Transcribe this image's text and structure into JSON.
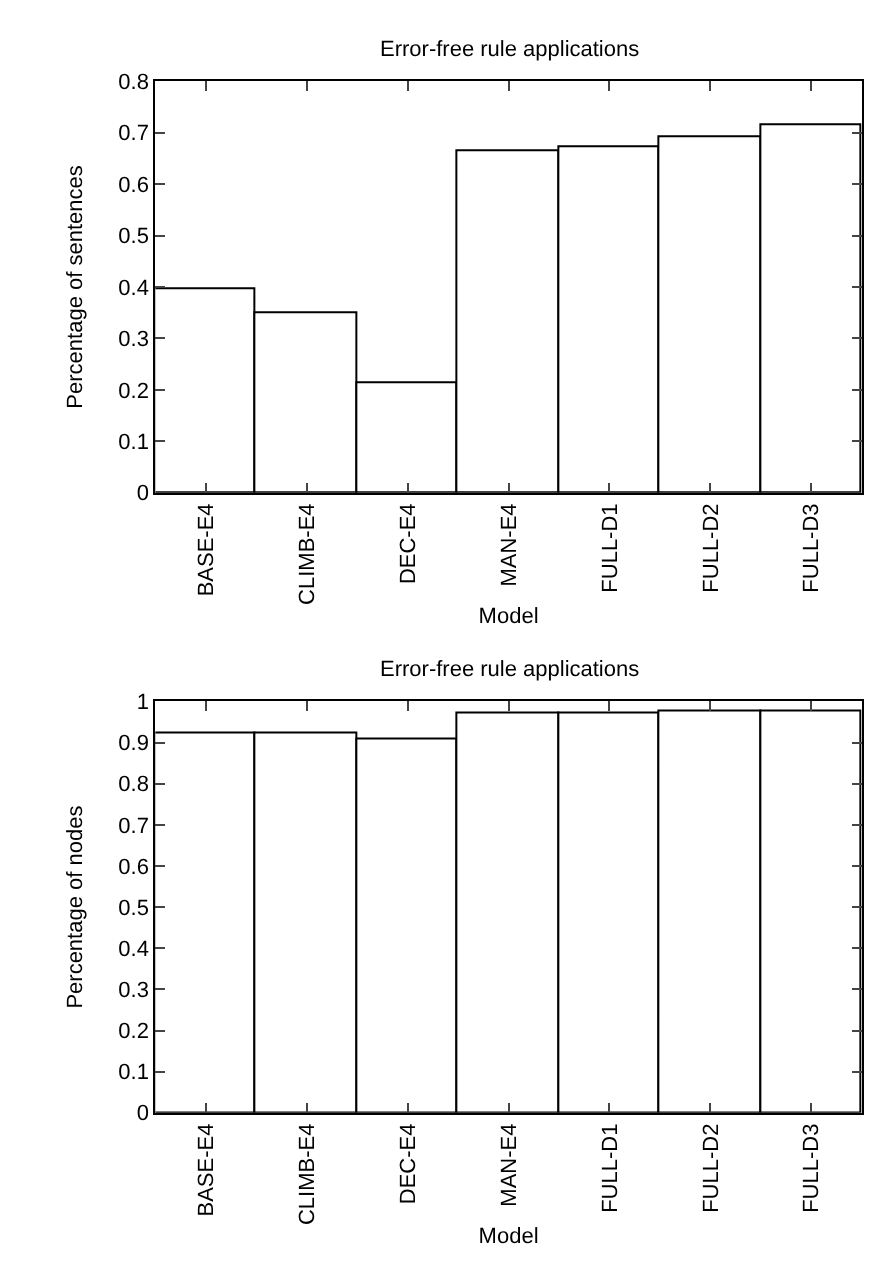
{
  "chart_data": [
    {
      "type": "bar",
      "title": "Error-free rule applications",
      "xlabel": "Model",
      "ylabel": "Percentage of sentences",
      "categories": [
        "BASE-E4",
        "CLIMB-E4",
        "DEC-E4",
        "MAN-E4",
        "FULL-D1",
        "FULL-D2",
        "FULL-D3"
      ],
      "values": [
        0.395,
        0.347,
        0.212,
        0.664,
        0.671,
        0.693,
        0.713
      ],
      "color": "#ffffff",
      "ylim": [
        0,
        0.8
      ],
      "yticks": [
        0,
        0.1,
        0.2,
        0.3,
        0.4,
        0.5,
        0.6,
        0.7,
        0.8
      ]
    },
    {
      "type": "bar",
      "title": "Error-free rule applications",
      "xlabel": "Model",
      "ylabel": "Percentage of nodes",
      "categories": [
        "BASE-E4",
        "CLIMB-E4",
        "DEC-E4",
        "MAN-E4",
        "FULL-D1",
        "FULL-D2",
        "FULL-D3"
      ],
      "values": [
        0.92,
        0.92,
        0.91,
        0.972,
        0.972,
        0.975,
        0.977
      ],
      "color": "#ffffff",
      "ylim": [
        0,
        1
      ],
      "yticks": [
        0,
        0.1,
        0.2,
        0.3,
        0.4,
        0.5,
        0.6,
        0.7,
        0.8,
        0.9,
        1
      ]
    }
  ]
}
